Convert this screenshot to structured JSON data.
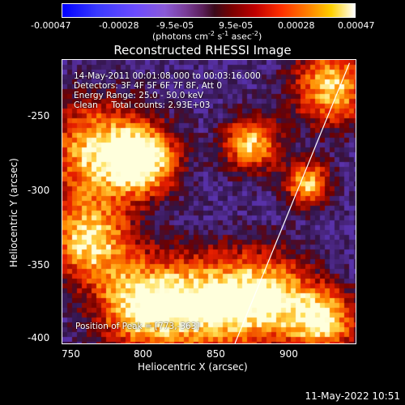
{
  "colorbar": {
    "ticks": [
      "-0.00047",
      "-0.00028",
      "-9.5e-05",
      "9.5e-05",
      "0.00028",
      "0.00047"
    ],
    "unit_text": "(photons cm",
    "unit_sup1": "-2",
    "unit_mid": " s",
    "unit_sup2": "-1",
    "unit_mid2": " asec",
    "unit_sup3": "-2",
    "unit_end": ")"
  },
  "chart_data": {
    "type": "heatmap",
    "title": "Reconstructed RHESSI Image",
    "xlabel": "Heliocentric X (arcsec)",
    "ylabel": "Heliocentric Y (arcsec)",
    "xlim": [
      745,
      937
    ],
    "ylim": [
      -403,
      -215
    ],
    "x_ticks": [
      "750",
      "800",
      "850",
      "900"
    ],
    "y_ticks": [
      "-250",
      "-300",
      "-350",
      "-400"
    ],
    "color_range": [
      -0.00047,
      0.00047
    ],
    "limb_line": [
      [
        858,
        -403
      ],
      [
        933,
        -217
      ]
    ],
    "annotations": {
      "line1": "14-May-2011 00:01:08.000 to 00:03:16.000",
      "line2": "Detectors: 3F 4F 5F 6F 7F 8F, Att 0",
      "line3": "Energy Range: 25.0 - 50.0 keV",
      "line4": "Clean     Total counts: 2.93E+03",
      "peak": "Position of Peak = [773,-363]"
    }
  },
  "footer": {
    "date": "11-May-2022 10:51"
  }
}
